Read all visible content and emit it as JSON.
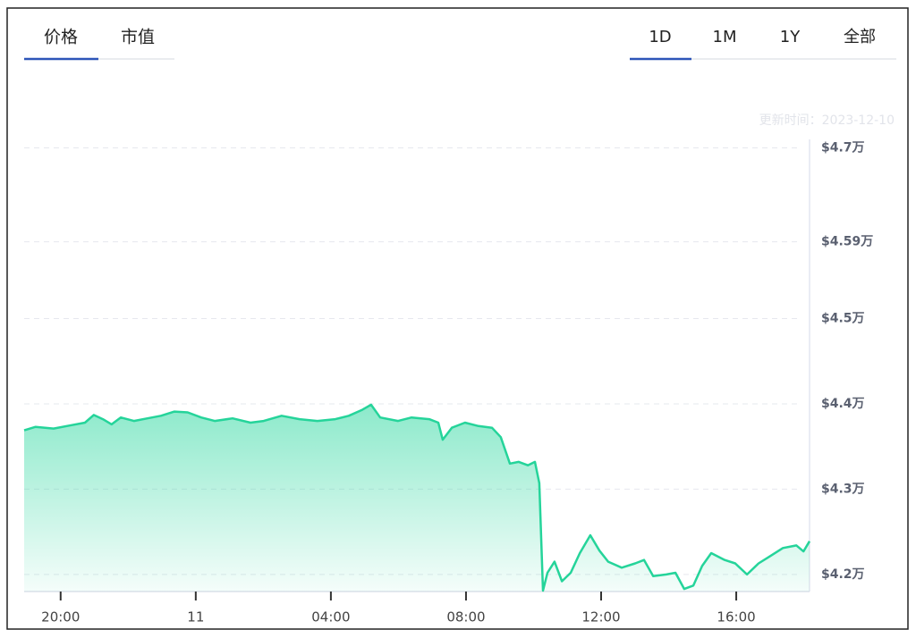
{
  "tabs": {
    "items": [
      "价格",
      "市值"
    ],
    "active": 0
  },
  "ranges": {
    "items": [
      "1D",
      "1M",
      "1Y",
      "全部"
    ],
    "active": 0
  },
  "updated": "更新时间：2023-12-10",
  "chart_data": {
    "type": "line",
    "area": true,
    "color": "#25d49a",
    "grid": true,
    "x": [
      18.92,
      19.26,
      19.79,
      20.32,
      20.72,
      20.98,
      21.25,
      21.51,
      21.78,
      22.17,
      22.57,
      22.97,
      23.37,
      23.76,
      24.16,
      24.56,
      25.09,
      25.62,
      26.01,
      26.54,
      27.07,
      27.6,
      28.13,
      28.53,
      28.93,
      29.19,
      29.46,
      29.99,
      30.39,
      30.91,
      31.18,
      31.31,
      31.58,
      31.97,
      32.37,
      32.77,
      33.03,
      33.3,
      33.56,
      33.83,
      34.04,
      34.17,
      34.28,
      34.41,
      34.62,
      34.84,
      35.1,
      35.37,
      35.68,
      35.95,
      36.21,
      36.61,
      37.01,
      37.27,
      37.54,
      37.93,
      38.2,
      38.46,
      38.73,
      38.99,
      39.26,
      39.66,
      39.97,
      40.32,
      40.66,
      40.98,
      41.38,
      41.78,
      41.99,
      42.17
    ],
    "values": [
      43690,
      43730,
      43710,
      43750,
      43780,
      43870,
      43820,
      43760,
      43840,
      43800,
      43830,
      43860,
      43910,
      43900,
      43840,
      43800,
      43830,
      43780,
      43800,
      43860,
      43820,
      43800,
      43820,
      43860,
      43930,
      43990,
      43840,
      43800,
      43840,
      43820,
      43780,
      43580,
      43720,
      43780,
      43740,
      43720,
      43610,
      43300,
      43320,
      43280,
      43320,
      43070,
      41810,
      42020,
      42150,
      41920,
      42020,
      42250,
      42460,
      42280,
      42150,
      42080,
      42130,
      42170,
      41980,
      42000,
      42020,
      41830,
      41870,
      42100,
      42250,
      42170,
      42130,
      42000,
      42130,
      42210,
      42310,
      42340,
      42270,
      42390
    ],
    "xlim": [
      18.92,
      42.17
    ],
    "xticks": [
      {
        "value": 20,
        "label": "20:00"
      },
      {
        "value": 24,
        "label": "11"
      },
      {
        "value": 28,
        "label": "04:00"
      },
      {
        "value": 32,
        "label": "08:00"
      },
      {
        "value": 36,
        "label": "12:00"
      },
      {
        "value": 40,
        "label": "16:00"
      }
    ],
    "ylim": [
      41800,
      47100
    ],
    "yticks": [
      {
        "value": 42000,
        "label": "$4.2万"
      },
      {
        "value": 43000,
        "label": "$4.3万"
      },
      {
        "value": 44000,
        "label": "$4.4万"
      },
      {
        "value": 45000,
        "label": "$4.5万"
      },
      {
        "value": 45900,
        "label": "$4.59万"
      },
      {
        "value": 47000,
        "label": "$4.7万"
      }
    ]
  }
}
